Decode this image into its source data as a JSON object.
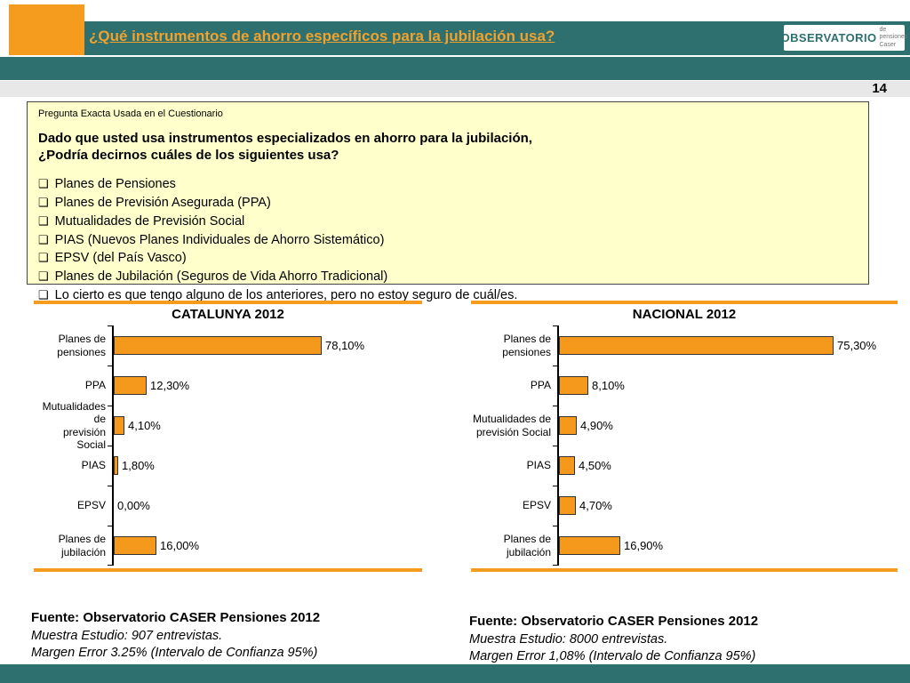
{
  "slide": {
    "page_number": "14",
    "title": "¿Qué instrumentos de ahorro específicos para la jubilación usa?",
    "logo": {
      "main": "OBSERVATORIO",
      "sub_line1": "de pensiones",
      "sub_line2": "Caser"
    }
  },
  "question_box": {
    "header": "Pregunta Exacta Usada en el Cuestionario",
    "intro": "Dado que usted usa instrumentos especializados en ahorro para la jubilación,\n¿Podría decirnos cuáles de los siguientes usa?",
    "bullet_glyph": "❑",
    "items": [
      "Planes de Pensiones",
      "Planes de Previsión Asegurada (PPA)",
      "Mutualidades de Previsión Social",
      "PIAS (Nuevos Planes Individuales de Ahorro Sistemático)",
      "EPSV (del País Vasco)",
      "Planes de Jubilación (Seguros de Vida Ahorro Tradicional)",
      "Lo cierto es que tengo alguno de los anteriores, pero no estoy seguro de cuál/es."
    ]
  },
  "chart_data": [
    {
      "type": "bar",
      "orientation": "horizontal",
      "title": "CATALUNYA 2012",
      "categories": [
        "Planes de\npensiones",
        "PPA",
        "Mutualidades de\nprevisión Social",
        "PIAS",
        "EPSV",
        "Planes de\njubilación"
      ],
      "values": [
        78.1,
        12.3,
        4.1,
        1.8,
        0.0,
        16.0
      ],
      "value_labels": [
        "78,10%",
        "12,30%",
        "4,10%",
        "1,80%",
        "0,00%",
        "16,00%"
      ],
      "xlim": [
        0,
        100
      ],
      "grid": false,
      "legend": false,
      "bar_color": "#F5991D"
    },
    {
      "type": "bar",
      "orientation": "horizontal",
      "title": "NACIONAL 2012",
      "categories": [
        "Planes de\npensiones",
        "PPA",
        "Mutualidades de\nprevisión Social",
        "PIAS",
        "EPSV",
        "Planes de\njubilación"
      ],
      "values": [
        75.3,
        8.1,
        4.9,
        4.5,
        4.7,
        16.9
      ],
      "value_labels": [
        "75,30%",
        "8,10%",
        "4,90%",
        "4,50%",
        "4,70%",
        "16,90%"
      ],
      "xlim": [
        0,
        100
      ],
      "grid": false,
      "legend": false,
      "bar_color": "#F5991D"
    }
  ],
  "sources": [
    {
      "fuente": "Fuente: Observatorio CASER Pensiones 2012",
      "muestra": "Muestra Estudio: 907 entrevistas.",
      "margen": "Margen Error 3.25% (Intervalo de Confianza 95%)"
    },
    {
      "fuente": "Fuente: Observatorio CASER Pensiones 2012",
      "muestra": "Muestra Estudio: 8000 entrevistas.",
      "margen": "Margen Error 1,08% (Intervalo de Confianza 95%)"
    }
  ],
  "colors": {
    "teal": "#2E6F6F",
    "orange": "#F59B1E",
    "bar_fill": "#F5991D",
    "title_color": "#EFA22E",
    "question_box_bg": "#FFFFCC"
  }
}
